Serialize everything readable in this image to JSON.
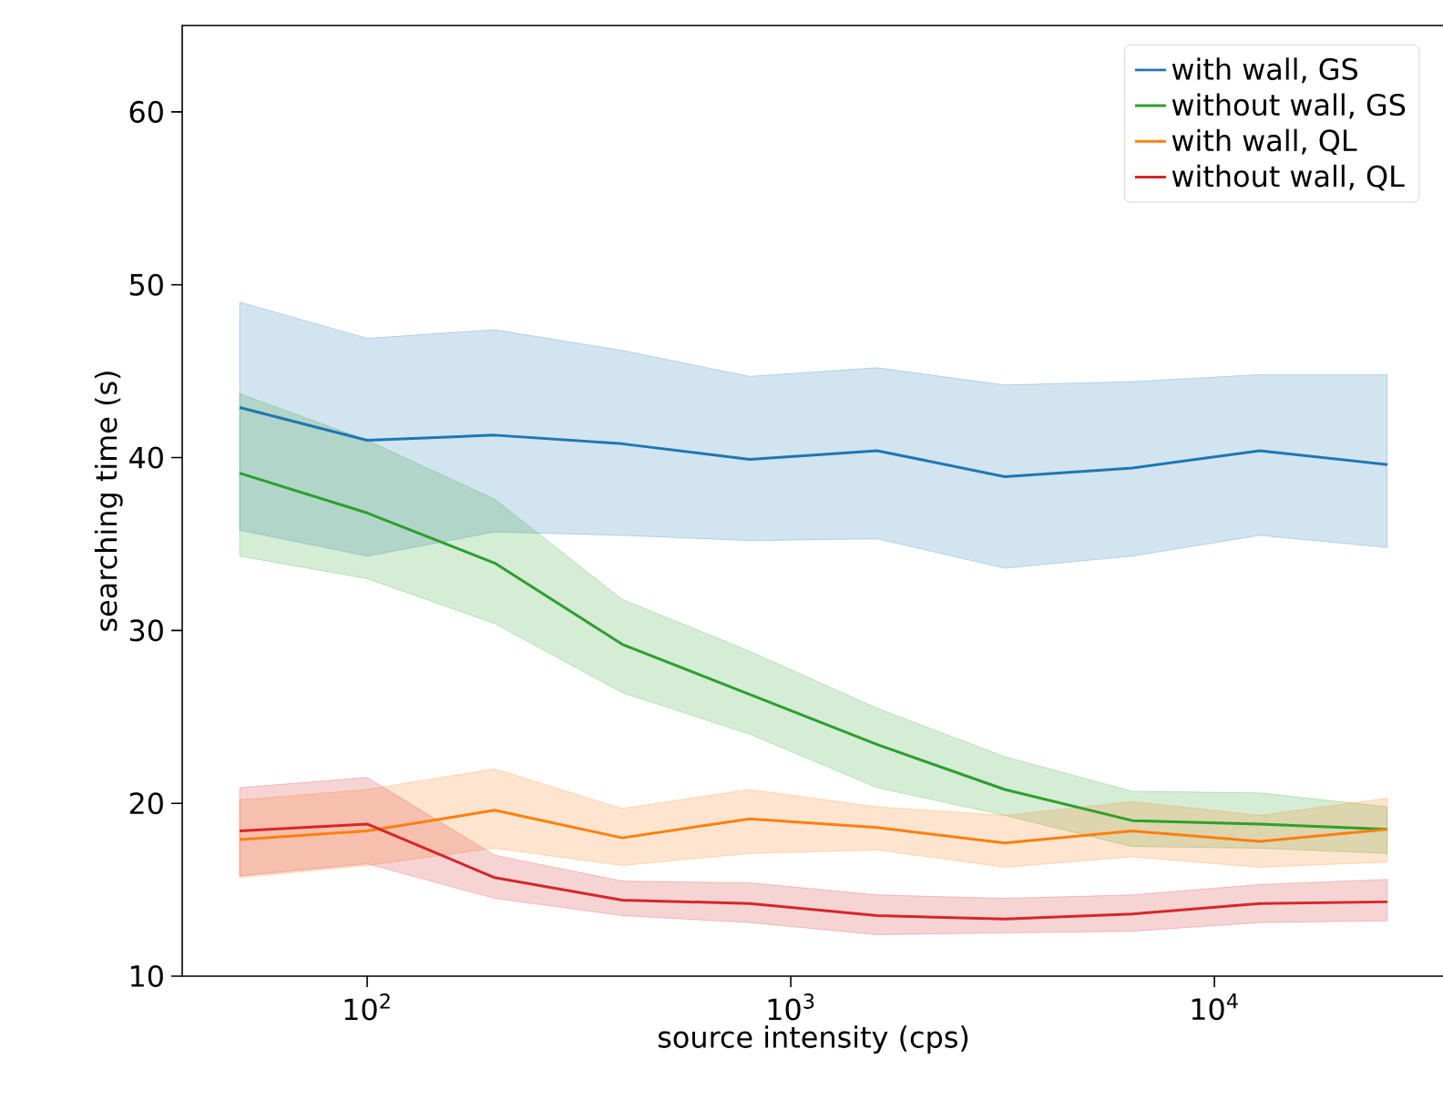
{
  "chart_data": {
    "type": "line",
    "xlabel": "source intensity (cps)",
    "ylabel": "searching time (s)",
    "x": [
      50,
      100,
      200,
      400,
      800,
      1600,
      3200,
      6400,
      12800,
      25600
    ],
    "log": "x",
    "xlim": [
      36.6,
      35000
    ],
    "ylim": [
      10,
      65
    ],
    "xticks": [
      {
        "value": 100,
        "label": "10$^{2}$"
      },
      {
        "value": 1000,
        "label": "10$^{3}$"
      },
      {
        "value": 10000,
        "label": "10$^{4}$"
      }
    ],
    "yticks": [
      10,
      20,
      30,
      40,
      50,
      60
    ],
    "grid": false,
    "legend": "top right",
    "series": [
      {
        "name": "with wall, GS",
        "color": "#1f77b4",
        "values": [
          42.9,
          41.0,
          41.3,
          40.8,
          39.9,
          40.4,
          38.9,
          39.4,
          40.4,
          39.6
        ],
        "upper": [
          49.0,
          46.9,
          47.4,
          46.2,
          44.7,
          45.2,
          44.2,
          44.4,
          44.8,
          44.8
        ],
        "lower": [
          35.8,
          34.3,
          35.7,
          35.5,
          35.2,
          35.3,
          33.6,
          34.3,
          35.5,
          34.8
        ]
      },
      {
        "name": "without wall, GS",
        "color": "#2ca02c",
        "values": [
          39.1,
          36.8,
          33.9,
          29.2,
          26.3,
          23.4,
          20.8,
          19.0,
          18.8,
          18.5
        ],
        "upper": [
          43.7,
          41.0,
          37.6,
          31.8,
          28.8,
          25.5,
          22.7,
          20.7,
          20.6,
          19.8
        ],
        "lower": [
          34.3,
          33.0,
          30.4,
          26.4,
          24.0,
          20.9,
          19.3,
          17.5,
          17.4,
          17.1
        ]
      },
      {
        "name": "with wall, QL",
        "color": "#ff7f0e",
        "values": [
          17.9,
          18.4,
          19.6,
          18.0,
          19.1,
          18.6,
          17.7,
          18.4,
          17.8,
          18.5
        ],
        "upper": [
          20.2,
          20.8,
          22.0,
          19.7,
          20.8,
          19.8,
          19.3,
          20.1,
          19.3,
          20.3
        ],
        "lower": [
          15.7,
          16.4,
          17.4,
          16.4,
          17.1,
          17.3,
          16.3,
          16.9,
          16.3,
          16.6
        ]
      },
      {
        "name": "without wall, QL",
        "color": "#d62728",
        "values": [
          18.4,
          18.8,
          15.7,
          14.4,
          14.2,
          13.5,
          13.3,
          13.6,
          14.2,
          14.3
        ],
        "upper": [
          20.9,
          21.5,
          17.0,
          15.5,
          15.4,
          14.7,
          14.5,
          14.7,
          15.3,
          15.6
        ],
        "lower": [
          15.8,
          16.5,
          14.5,
          13.5,
          13.1,
          12.4,
          12.5,
          12.6,
          13.1,
          13.2
        ]
      }
    ]
  }
}
